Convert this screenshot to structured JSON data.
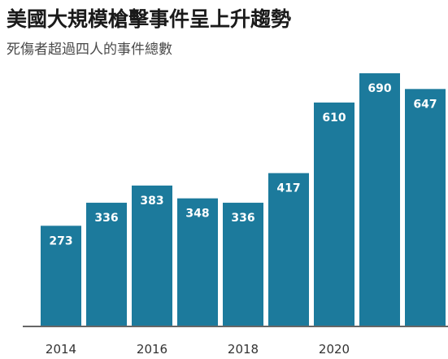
{
  "header": {
    "title": "美國大規模槍擊事件呈上升趨勢",
    "subtitle": "死傷者超過四人的事件總數"
  },
  "colors": {
    "bar": "#1c7a9c",
    "axis": "#333333"
  },
  "chart_data": {
    "type": "bar",
    "title": "美國大規模槍擊事件呈上升趨勢",
    "subtitle": "死傷者超過四人的事件總數",
    "categories": [
      "2014",
      "2015",
      "2016",
      "2017",
      "2018",
      "2019",
      "2020",
      "2021",
      "2022"
    ],
    "values": [
      273,
      336,
      383,
      348,
      336,
      417,
      610,
      690,
      647
    ],
    "tick_labels": [
      "2014",
      "2016",
      "2018",
      "2020"
    ],
    "data_labels": [
      "273",
      "336",
      "383",
      "348",
      "336",
      "417",
      "610",
      "690",
      "647"
    ],
    "xlabel": "",
    "ylabel": "",
    "ylim": [
      0,
      700
    ],
    "grid": false,
    "legend": "none"
  }
}
